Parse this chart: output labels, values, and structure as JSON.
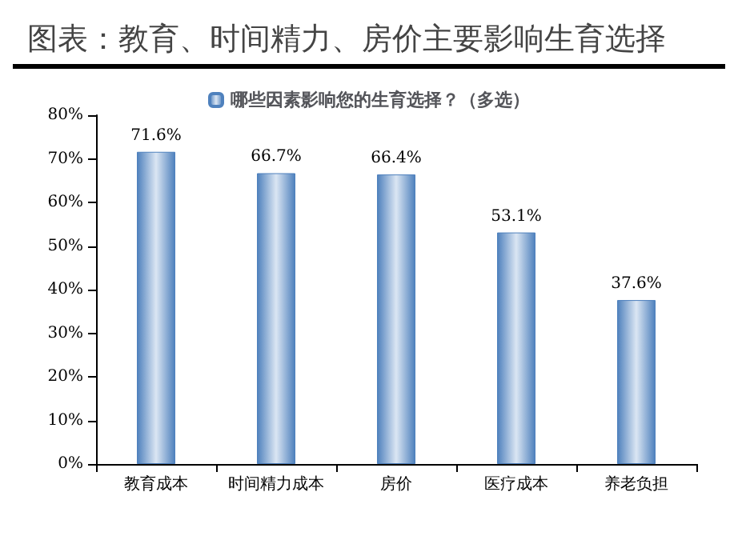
{
  "chart_data": {
    "type": "bar",
    "title": "图表：教育、时间精力、房价主要影响生育选择",
    "categories": [
      "教育成本",
      "时间精力成本",
      "房价",
      "医疗成本",
      "养老负担"
    ],
    "series": [
      {
        "name": "哪些因素影响您的生育选择？（多选）",
        "color": "#4f81bd",
        "values": [
          71.6,
          66.7,
          66.4,
          53.1,
          37.6
        ],
        "value_labels": [
          "71.6%",
          "66.7%",
          "66.4%",
          "53.1%",
          "37.6%"
        ]
      }
    ],
    "ylim": [
      0,
      80
    ],
    "yticks": [
      {
        "value": 0,
        "label": "0%"
      },
      {
        "value": 10,
        "label": "10%"
      },
      {
        "value": 20,
        "label": "20%"
      },
      {
        "value": 30,
        "label": "30%"
      },
      {
        "value": 40,
        "label": "40%"
      },
      {
        "value": 50,
        "label": "50%"
      },
      {
        "value": 60,
        "label": "60%"
      },
      {
        "value": 70,
        "label": "70%"
      },
      {
        "value": 80,
        "label": "80%"
      }
    ],
    "grid": false,
    "legend": "top"
  }
}
